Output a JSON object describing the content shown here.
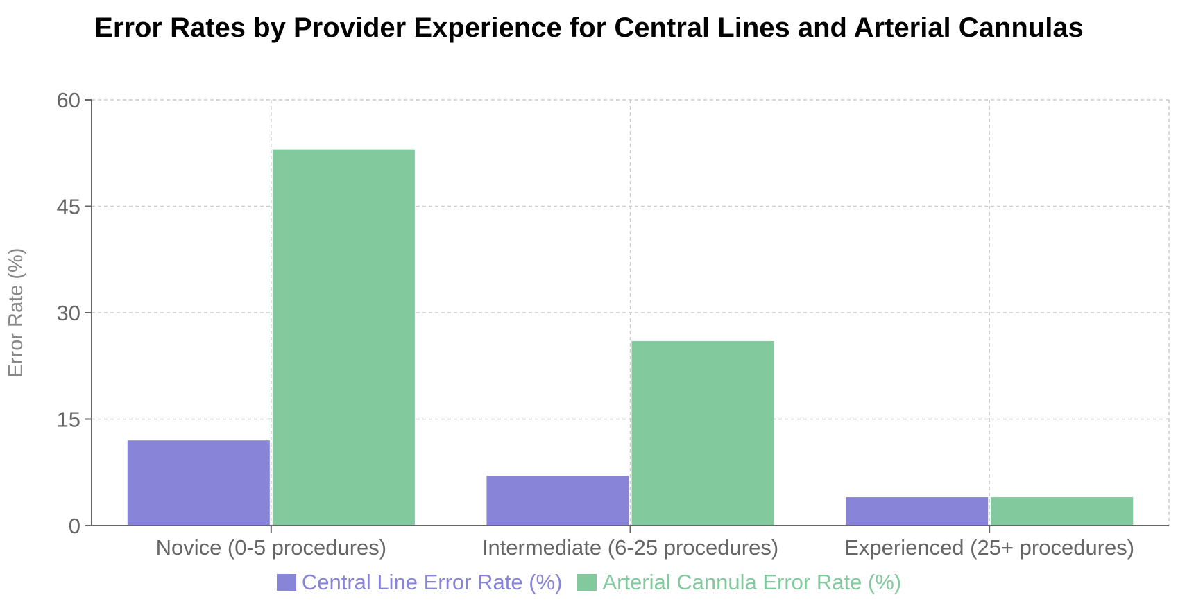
{
  "chart_data": {
    "type": "bar",
    "title": "Error Rates by Provider Experience for Central Lines and Arterial Cannulas",
    "xlabel": "",
    "ylabel": "Error Rate (%)",
    "ylim": [
      0,
      60
    ],
    "yticks": [
      "0",
      "15",
      "30",
      "45",
      "60"
    ],
    "grid": true,
    "legend_position": "bottom",
    "categories": [
      "Novice (0-5 procedures)",
      "Intermediate (6-25 procedures)",
      "Experienced (25+ procedures)"
    ],
    "series": [
      {
        "name": "Central Line Error Rate (%)",
        "color": "#8884d8",
        "values": [
          12,
          7,
          4
        ]
      },
      {
        "name": "Arterial Cannula Error Rate (%)",
        "color": "#82ca9d",
        "values": [
          53,
          26,
          4
        ]
      }
    ]
  }
}
